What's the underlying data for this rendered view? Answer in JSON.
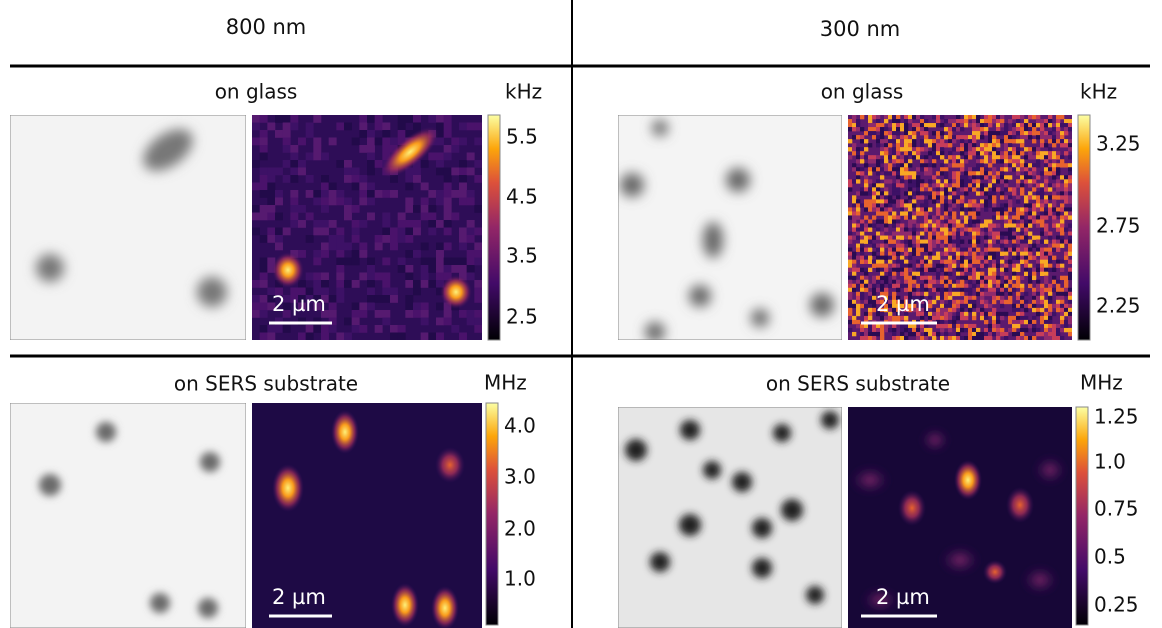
{
  "columns": [
    {
      "title": "800 nm",
      "panels": [
        {
          "label": "on glass",
          "unit": "kHz",
          "colorbar_ticks": [
            "5.5",
            "4.5",
            "3.5",
            "2.5"
          ],
          "scale_bar": "2 µm"
        },
        {
          "label": "on SERS substrate",
          "unit": "MHz",
          "colorbar_ticks": [
            "4.0",
            "3.0",
            "2.0",
            "1.0"
          ],
          "scale_bar": "2 µm"
        }
      ]
    },
    {
      "title": "300 nm",
      "panels": [
        {
          "label": "on glass",
          "unit": "kHz",
          "colorbar_ticks": [
            "3.25",
            "2.75",
            "2.25"
          ],
          "scale_bar": "2 µm"
        },
        {
          "label": "on SERS substrate",
          "unit": "MHz",
          "colorbar_ticks": [
            "1.25",
            "1.0",
            "0.75",
            "0.5",
            "0.25"
          ],
          "scale_bar": "2 µm"
        }
      ]
    }
  ]
}
